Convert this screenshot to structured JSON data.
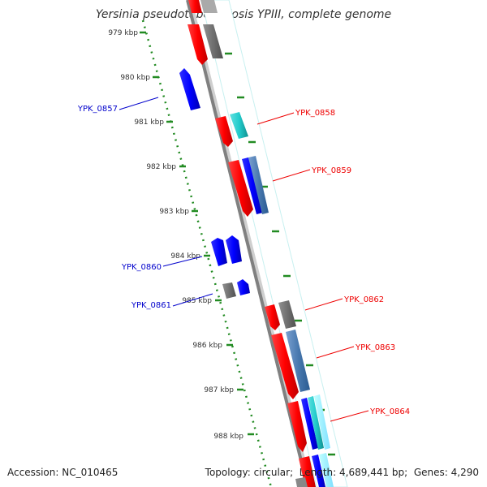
{
  "title": "Yersinia pseudotuberculosis YPIII, complete genome",
  "footer": {
    "accession_label": "Accession:",
    "accession": "NC_010465",
    "topology_label": "Topology:",
    "topology": "circular",
    "length_label": "Length:",
    "length": "4,689,441 bp",
    "genes_label": "Genes:",
    "genes": "4,290"
  },
  "colors": {
    "red": "#ff0000",
    "blue": "#0000ff",
    "gray": "#707070",
    "cyan": "#22cccc",
    "steelblue": "#4a7ab0",
    "ticks": "#228b22",
    "backbone": "#808080"
  },
  "ticks": [
    {
      "label": "979 kbp"
    },
    {
      "label": "980 kbp"
    },
    {
      "label": "981 kbp"
    },
    {
      "label": "982 kbp"
    },
    {
      "label": "983 kbp"
    },
    {
      "label": "984 kbp"
    },
    {
      "label": "985 kbp"
    },
    {
      "label": "986 kbp"
    },
    {
      "label": "987 kbp"
    },
    {
      "label": "988 kbp"
    }
  ],
  "genes": [
    {
      "name": "YPK_0857",
      "strand": "minus",
      "color": "blue"
    },
    {
      "name": "YPK_0858",
      "strand": "plus",
      "color": "red"
    },
    {
      "name": "YPK_0859",
      "strand": "plus",
      "color": "red"
    },
    {
      "name": "YPK_0860",
      "strand": "minus",
      "color": "blue"
    },
    {
      "name": "YPK_0861",
      "strand": "minus",
      "color": "blue"
    },
    {
      "name": "YPK_0862",
      "strand": "plus",
      "color": "red"
    },
    {
      "name": "YPK_0863",
      "strand": "plus",
      "color": "red"
    },
    {
      "name": "YPK_0864",
      "strand": "plus",
      "color": "red"
    }
  ]
}
